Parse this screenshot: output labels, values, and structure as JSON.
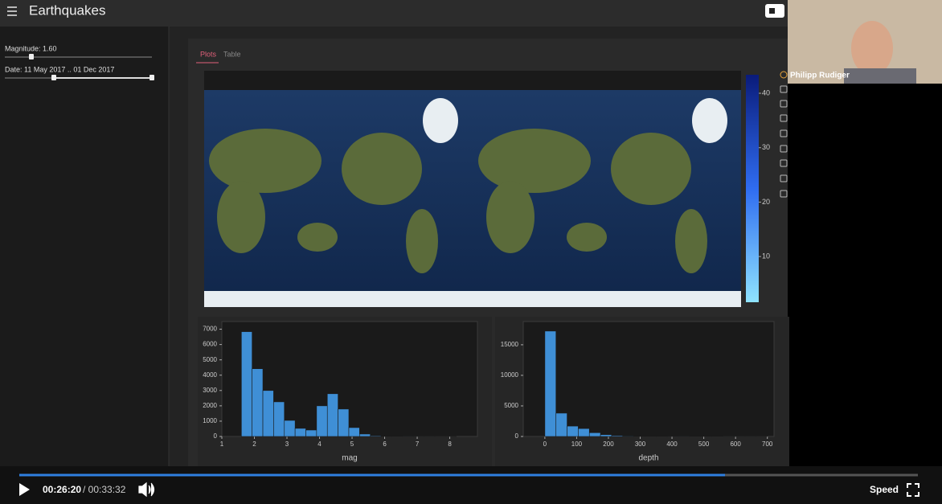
{
  "header": {
    "title": "Earthquakes"
  },
  "sidebar": {
    "magnitude_label": "Magnitude: 1.60",
    "date_label": "Date: 11 May 2017 .. 01 Dec 2017"
  },
  "tabs": [
    "Plots",
    "Table"
  ],
  "map": {
    "colorbar": {
      "lim": [
        1.6,
        43.4
      ],
      "ticks": [
        10,
        20,
        30,
        40
      ]
    }
  },
  "histograms": [
    {
      "type": "histogram",
      "xlabel": "mag",
      "color": "#3f8fd6",
      "bins": [
        1.6,
        1.93,
        2.26,
        2.59,
        2.92,
        3.25,
        3.58,
        3.91,
        4.24,
        4.57,
        4.9,
        5.23,
        5.56,
        5.89,
        6.22,
        6.55,
        6.88,
        7.21,
        7.54,
        7.87,
        8.2
      ],
      "values": [
        6840,
        4420,
        3000,
        2260,
        1050,
        530,
        420,
        2000,
        2790,
        1790,
        580,
        160,
        50,
        25,
        12,
        6,
        3,
        2,
        1,
        1
      ],
      "xlim": [
        1,
        8.85
      ],
      "xticks": [
        1,
        2,
        3,
        4,
        5,
        6,
        7,
        8
      ],
      "ylim": [
        0,
        7500
      ],
      "yticks": [
        0,
        1000,
        2000,
        3000,
        4000,
        5000,
        6000,
        7000
      ]
    },
    {
      "type": "histogram",
      "xlabel": "depth",
      "color": "#3f8fd6",
      "bins": [
        0,
        35,
        70,
        105,
        140,
        175,
        210,
        245,
        280,
        315,
        350,
        385,
        420,
        455,
        490,
        525,
        560,
        595,
        630,
        665,
        700
      ],
      "values": [
        17240,
        3820,
        1700,
        1300,
        620,
        300,
        150,
        90,
        60,
        40,
        25,
        20,
        15,
        60,
        50,
        30,
        10,
        5,
        5,
        3
      ],
      "xlim": [
        -68,
        721
      ],
      "xticks": [
        0,
        100,
        200,
        300,
        400,
        500,
        600,
        700
      ],
      "ylim": [
        0,
        18800
      ],
      "yticks": [
        0,
        5000,
        10000,
        15000
      ]
    }
  ],
  "webcam": {
    "name": "Philipp Rudiger"
  },
  "player": {
    "elapsed": "00:26:20",
    "duration": "/ 00:33:32",
    "speed": "Speed"
  }
}
